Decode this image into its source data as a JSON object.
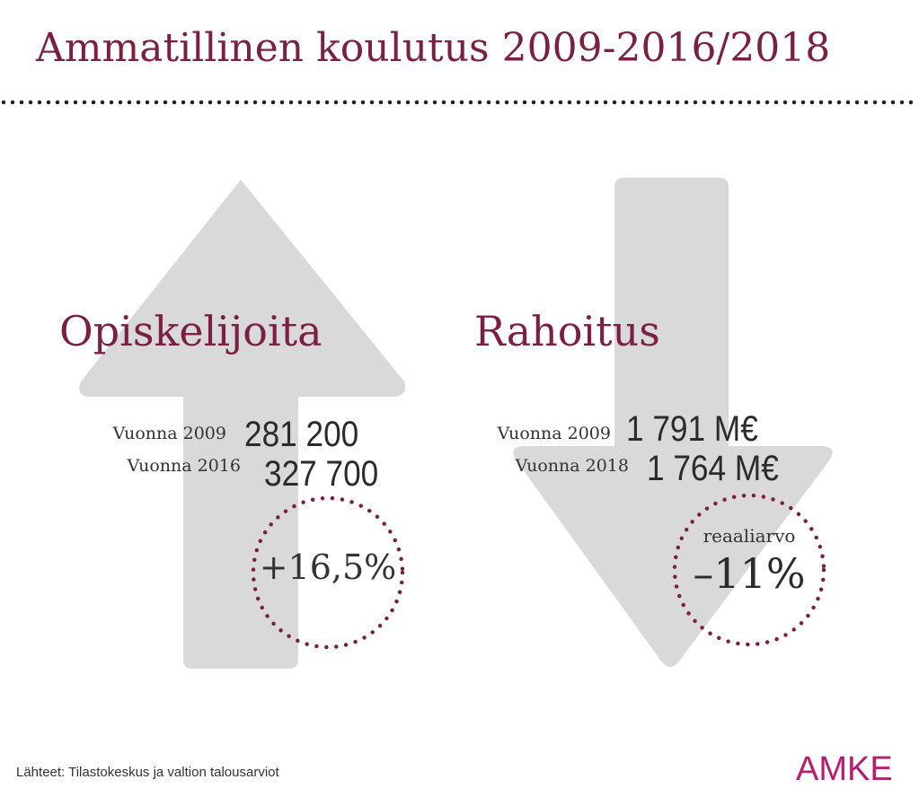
{
  "title": "Ammatillinen koulutus 2009-2016/2018",
  "colors": {
    "accent": "#7b1f45",
    "arrow": "#d9d9d9",
    "logo": "#b51e6e"
  },
  "students": {
    "heading": "Opiskelijoita",
    "row1_label": "Vuonna 2009",
    "row1_value": "281 200",
    "row2_label": "Vuonna 2016",
    "row2_value": "327 700",
    "change": "+16,5%",
    "direction_icon": "arrow-up-icon"
  },
  "funding": {
    "heading": "Rahoitus",
    "row1_label": "Vuonna 2009",
    "row1_value": "1 791 M€",
    "row2_label": "Vuonna 2018",
    "row2_value": "1 764 M€",
    "change_label": "reaaliarvo",
    "change": "–11%",
    "direction_icon": "arrow-down-icon"
  },
  "source": "Lähteet: Tilastokeskus ja valtion talousarviot",
  "logo": "AMKE"
}
